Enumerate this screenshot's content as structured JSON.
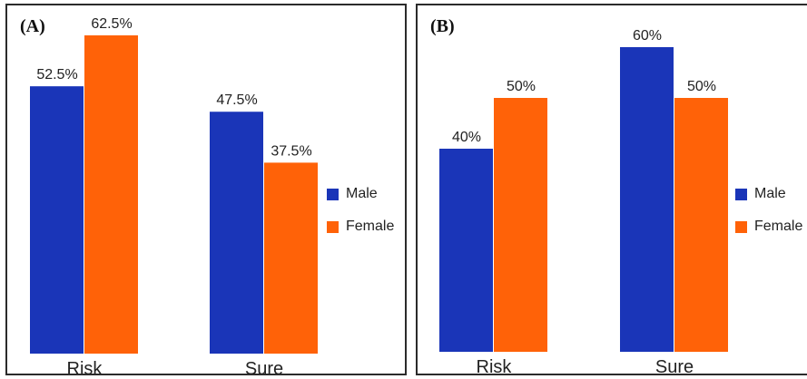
{
  "colors": {
    "male": "#1a35b8",
    "female": "#ff6208"
  },
  "chart_data": [
    {
      "type": "bar",
      "panel": "(A)",
      "categories": [
        "Risk",
        "Sure"
      ],
      "series": [
        {
          "name": "Male",
          "values": [
            52.5,
            47.5
          ],
          "labels": [
            "52.5%",
            "47.5%"
          ]
        },
        {
          "name": "Female",
          "values": [
            62.5,
            37.5
          ],
          "labels": [
            "62.5%",
            "37.5%"
          ]
        }
      ],
      "ylim": [
        0,
        62.5
      ],
      "legend": "right",
      "grid": false
    },
    {
      "type": "bar",
      "panel": "(B)",
      "categories": [
        "Risk",
        "Sure"
      ],
      "series": [
        {
          "name": "Male",
          "values": [
            40,
            60
          ],
          "labels": [
            "40%",
            "60%"
          ]
        },
        {
          "name": "Female",
          "values": [
            50,
            50
          ],
          "labels": [
            "50%",
            "50%"
          ]
        }
      ],
      "ylim": [
        0,
        60
      ],
      "legend": "right",
      "grid": false
    }
  ]
}
